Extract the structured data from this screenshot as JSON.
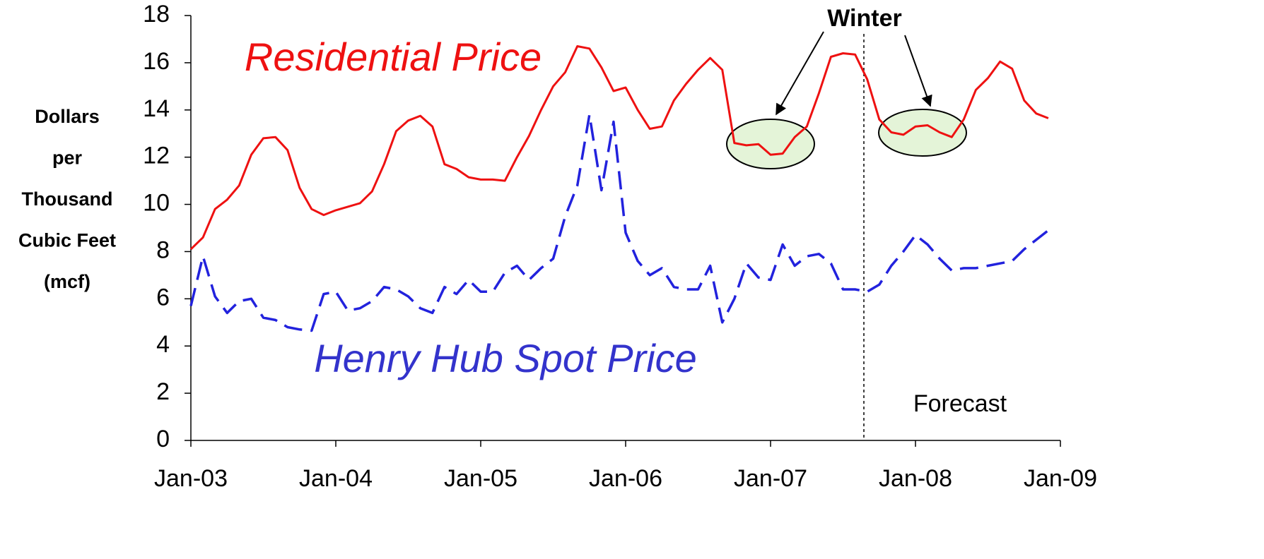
{
  "chart_data": {
    "type": "line",
    "y_axis_label": [
      "Dollars",
      "per",
      "Thousand",
      "Cubic Feet",
      "(mcf)"
    ],
    "annotations": {
      "residential": "Residential Price",
      "henry": "Henry Hub Spot Price",
      "winter": "Winter",
      "forecast": "Forecast"
    },
    "categories": [
      "Jan-03",
      null,
      null,
      null,
      null,
      null,
      null,
      null,
      null,
      null,
      null,
      null,
      "Jan-04",
      null,
      null,
      null,
      null,
      null,
      null,
      null,
      null,
      null,
      null,
      null,
      "Jan-05",
      null,
      null,
      null,
      null,
      null,
      null,
      null,
      null,
      null,
      null,
      null,
      "Jan-06",
      null,
      null,
      null,
      null,
      null,
      null,
      null,
      null,
      null,
      null,
      null,
      "Jan-07",
      null,
      null,
      null,
      null,
      null,
      null,
      null,
      null,
      null,
      null,
      null,
      "Jan-08",
      null,
      null,
      null,
      null,
      null,
      null,
      null,
      null,
      null,
      null,
      null,
      "Jan-09"
    ],
    "series": [
      {
        "name": "Residential Price",
        "color": "#ee1111",
        "dash": false,
        "values": [
          8.1,
          8.6,
          9.8,
          10.2,
          10.8,
          12.1,
          12.8,
          12.85,
          12.3,
          10.7,
          9.8,
          9.55,
          9.75,
          9.9,
          10.05,
          10.55,
          11.7,
          13.1,
          13.55,
          13.75,
          13.3,
          11.7,
          11.5,
          11.15,
          11.05,
          11.05,
          11.0,
          12.0,
          12.9,
          14.0,
          15.0,
          15.6,
          16.7,
          16.6,
          15.8,
          14.8,
          14.95,
          14.0,
          13.2,
          13.3,
          14.4,
          15.1,
          15.7,
          16.2,
          15.7,
          12.6,
          12.5,
          12.55,
          12.1,
          12.15,
          12.85,
          13.3,
          14.7,
          16.25,
          16.4,
          16.35,
          15.3,
          13.6,
          13.05,
          12.95,
          13.3,
          13.35,
          13.05,
          12.85,
          13.6,
          14.85,
          15.35,
          16.05,
          15.75,
          14.4,
          13.85,
          13.65,
          null
        ]
      },
      {
        "name": "Henry Hub Spot Price",
        "color": "#2222dd",
        "dash": true,
        "values": [
          5.7,
          7.8,
          6.1,
          5.4,
          5.9,
          6.0,
          5.2,
          5.1,
          4.8,
          4.7,
          4.65,
          6.2,
          6.3,
          5.5,
          5.6,
          5.9,
          6.5,
          6.4,
          6.1,
          5.6,
          5.4,
          6.5,
          6.2,
          6.8,
          6.3,
          6.3,
          7.1,
          7.4,
          6.8,
          7.3,
          7.7,
          9.5,
          10.8,
          13.8,
          10.6,
          13.5,
          8.8,
          7.6,
          7.0,
          7.3,
          6.5,
          6.4,
          6.4,
          7.4,
          5.0,
          6.0,
          7.5,
          6.9,
          6.8,
          8.3,
          7.4,
          7.8,
          7.9,
          7.5,
          6.4,
          6.4,
          6.3,
          6.6,
          7.4,
          8.0,
          8.7,
          8.3,
          7.7,
          7.2,
          7.3,
          7.3,
          7.4,
          7.5,
          7.6,
          8.1,
          8.5,
          8.9,
          null
        ]
      }
    ],
    "ylim": [
      0,
      18
    ],
    "yticks": [
      0,
      2,
      4,
      6,
      8,
      10,
      12,
      14,
      16,
      18
    ]
  }
}
